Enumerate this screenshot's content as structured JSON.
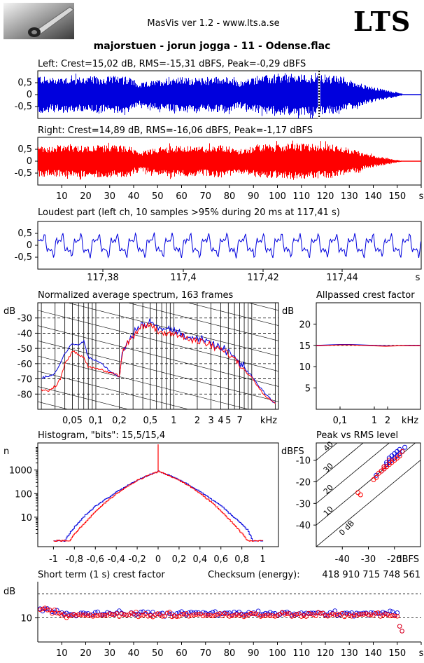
{
  "header": {
    "app_title": "MasVis ver 1.2 - www.lts.a.se",
    "brand": "LTS",
    "track_title": "majorstuen - jorun jogga - 11 - Odense.flac"
  },
  "colors": {
    "left": "#0000dd",
    "right": "#ff0000",
    "frame": "#000000",
    "grid": "#000000"
  },
  "chart_data": [
    {
      "id": "left_wave",
      "type": "area",
      "title": "Left: Crest=15,02 dB, RMS=-15,31 dBFS, Peak=-0,29 dBFS",
      "ylim": [
        -1,
        1
      ],
      "yticks": [
        "0,5",
        "0",
        "-0,5"
      ],
      "xlim": [
        0,
        160
      ],
      "marker_at_s": 117.41,
      "series": [
        {
          "name": "Left",
          "values": [
            0.85,
            0.72,
            0.75,
            0.78,
            0.74,
            0.76,
            0.78,
            0.75,
            0.8,
            0.77,
            0.76,
            0.45,
            0.55,
            0.62,
            0.7,
            0.75,
            0.73,
            0.72,
            0.7,
            0.74,
            0.78,
            0.72,
            0.55,
            0.65,
            0.78,
            0.82,
            0.8,
            0.84,
            0.88,
            0.85,
            0.86,
            0.84,
            0.82,
            0.78,
            0.65,
            0.55,
            0.4,
            0.3,
            0.22,
            0.12,
            0.05
          ]
        }
      ]
    },
    {
      "id": "right_wave",
      "type": "area",
      "title": "Right: Crest=14,89 dB, RMS=-16,06 dBFS, Peak=-1,17 dBFS",
      "ylim": [
        -1,
        1
      ],
      "yticks": [
        "0,5",
        "0",
        "-0,5"
      ],
      "xticks": [
        "10",
        "20",
        "30",
        "40",
        "50",
        "60",
        "70",
        "80",
        "90",
        "100",
        "110",
        "120",
        "130",
        "140",
        "150",
        "s"
      ],
      "xlim": [
        0,
        160
      ],
      "series": [
        {
          "name": "Right",
          "values": [
            0.72,
            0.62,
            0.66,
            0.68,
            0.64,
            0.67,
            0.69,
            0.66,
            0.7,
            0.67,
            0.66,
            0.38,
            0.48,
            0.56,
            0.62,
            0.66,
            0.64,
            0.63,
            0.62,
            0.66,
            0.7,
            0.63,
            0.5,
            0.58,
            0.68,
            0.72,
            0.7,
            0.74,
            0.76,
            0.74,
            0.75,
            0.73,
            0.72,
            0.68,
            0.56,
            0.46,
            0.32,
            0.24,
            0.16,
            0.08,
            0.02
          ]
        }
      ]
    },
    {
      "id": "loudest",
      "type": "line",
      "title": "Loudest part (left  ch, 10 samples >95% during 20 ms at 117,41 s)",
      "ylim": [
        -1,
        1
      ],
      "yticks": [
        "0,5",
        "0",
        "-0,5"
      ],
      "xticks": [
        "117,38",
        "117,4",
        "117,42",
        "117,44",
        "s"
      ],
      "series": [
        {
          "name": "Left"
        }
      ]
    },
    {
      "id": "spectrum",
      "type": "line",
      "title": "Normalized average spectrum, 163 frames",
      "ylabel": "dB",
      "yticks": [
        "-30",
        "-40",
        "-50",
        "-60",
        "-70",
        "-80"
      ],
      "xticks": [
        "0,05",
        "0,1",
        "0,2",
        "0,5",
        "1",
        "2",
        "3",
        "4",
        "5",
        "7",
        "kHz"
      ],
      "ylim": [
        -90,
        -20
      ],
      "x_khz": [
        0.02,
        0.025,
        0.03,
        0.035,
        0.04,
        0.05,
        0.06,
        0.07,
        0.08,
        0.1,
        0.12,
        0.15,
        0.18,
        0.2,
        0.22,
        0.25,
        0.3,
        0.35,
        0.4,
        0.5,
        0.6,
        0.7,
        0.8,
        1,
        1.2,
        1.5,
        2,
        2.5,
        3,
        4,
        5,
        6,
        7,
        8,
        10,
        12,
        15,
        20
      ],
      "series": [
        {
          "name": "Left",
          "values": [
            -70,
            -68,
            -66,
            -60,
            -53,
            -47,
            -48,
            -45,
            -56,
            -58,
            -60,
            -65,
            -67,
            -69,
            -52,
            -46,
            -40,
            -36,
            -34,
            -32,
            -36,
            -38,
            -37,
            -38,
            -40,
            -42,
            -44,
            -45,
            -47,
            -50,
            -52,
            -56,
            -60,
            -63,
            -68,
            -74,
            -80,
            -86
          ]
        },
        {
          "name": "Right",
          "values": [
            -77,
            -78,
            -75,
            -70,
            -60,
            -52,
            -54,
            -56,
            -62,
            -63,
            -64,
            -66,
            -67,
            -69,
            -54,
            -47,
            -42,
            -38,
            -36,
            -34,
            -38,
            -40,
            -39,
            -40,
            -42,
            -44,
            -45,
            -47,
            -48,
            -51,
            -53,
            -57,
            -61,
            -64,
            -69,
            -75,
            -81,
            -86
          ]
        }
      ]
    },
    {
      "id": "allpass",
      "type": "line",
      "title": "Allpassed crest factor",
      "ylabel": "dB",
      "yticks": [
        "20",
        "15",
        "10",
        "5"
      ],
      "ylim": [
        0,
        25
      ],
      "xticks": [
        "0,1",
        "1",
        "2",
        "kHz"
      ],
      "series": [
        {
          "name": "Left",
          "values": [
            15.0,
            15.1,
            15.2,
            15.2,
            15.1,
            15.0,
            14.9,
            14.9,
            15.0,
            15.0
          ]
        },
        {
          "name": "Right",
          "values": [
            14.9,
            15.0,
            15.1,
            15.1,
            15.0,
            14.9,
            14.8,
            14.9,
            14.9,
            14.9
          ]
        }
      ]
    },
    {
      "id": "histogram",
      "type": "line",
      "title": "Histogram, \"bits\": 15,5/15,4",
      "ylabel": "n",
      "yticks": [
        "1000",
        "100",
        "10"
      ],
      "xticks": [
        "-1",
        "-0,8",
        "-0,6",
        "-0,4",
        "-0,2",
        "0",
        "0,2",
        "0,4",
        "0,6",
        "0,8",
        "1"
      ],
      "x": [
        -1,
        -0.9,
        -0.85,
        -0.8,
        -0.7,
        -0.6,
        -0.5,
        -0.4,
        -0.3,
        -0.2,
        -0.1,
        0,
        0.1,
        0.2,
        0.3,
        0.4,
        0.5,
        0.6,
        0.7,
        0.8,
        0.85,
        0.9,
        1
      ],
      "series": [
        {
          "name": "Left",
          "values": [
            1,
            1,
            2,
            4,
            12,
            30,
            60,
            120,
            220,
            380,
            600,
            900,
            600,
            380,
            220,
            120,
            60,
            30,
            12,
            5,
            3,
            1,
            1
          ]
        },
        {
          "name": "Right",
          "values": [
            1,
            1,
            1,
            2,
            6,
            18,
            45,
            100,
            200,
            360,
            580,
            880,
            580,
            360,
            200,
            100,
            45,
            18,
            6,
            2,
            1,
            1,
            1
          ]
        }
      ]
    },
    {
      "id": "peak_rms",
      "type": "scatter",
      "title": "Peak vs RMS level",
      "ylabel": "dBFS",
      "xlabel": "dBFS",
      "yticks": [
        "-10",
        "-20",
        "-30",
        "-40"
      ],
      "xticks": [
        "-40",
        "-30",
        "-20"
      ],
      "crest_labels": [
        "40",
        "30",
        "20",
        "10",
        "0 dB"
      ],
      "xlim": [
        -50,
        -10
      ],
      "ylim": [
        -50,
        -2
      ],
      "series": [
        {
          "name": "Left",
          "points": [
            [
              -27,
              -17
            ],
            [
              -25,
              -15
            ],
            [
              -24,
              -14
            ],
            [
              -23,
              -12
            ],
            [
              -22,
              -11
            ],
            [
              -21,
              -10
            ],
            [
              -20,
              -9
            ],
            [
              -19,
              -8
            ],
            [
              -18,
              -7
            ],
            [
              -17,
              -6
            ],
            [
              -20,
              -7
            ],
            [
              -22,
              -9
            ],
            [
              -23,
              -11
            ],
            [
              -19,
              -6
            ],
            [
              -18,
              -5
            ],
            [
              -16,
              -4
            ],
            [
              -21,
              -8
            ],
            [
              -24,
              -13
            ]
          ]
        },
        {
          "name": "Right",
          "points": [
            [
              -34,
              -25
            ],
            [
              -33,
              -26
            ],
            [
              -28,
              -19
            ],
            [
              -27,
              -18
            ],
            [
              -26,
              -16
            ],
            [
              -25,
              -15
            ],
            [
              -24,
              -13
            ],
            [
              -23,
              -13
            ],
            [
              -22,
              -12
            ],
            [
              -21,
              -11
            ],
            [
              -20,
              -10
            ],
            [
              -19,
              -9
            ],
            [
              -18,
              -8
            ],
            [
              -17,
              -6
            ],
            [
              -22,
              -10
            ],
            [
              -24,
              -14
            ]
          ]
        }
      ]
    },
    {
      "id": "short_term",
      "type": "scatter",
      "title": "Short term (1 s) crest factor",
      "checksum_label": "Checksum (energy):",
      "checksum_value": "418 910 715 748 561",
      "ylabel": "dB",
      "yticks": [
        "10"
      ],
      "xticks": [
        "10",
        "20",
        "30",
        "40",
        "50",
        "60",
        "70",
        "80",
        "90",
        "100",
        "110",
        "120",
        "130",
        "140",
        "150",
        "s"
      ],
      "xlim": [
        0,
        160
      ],
      "ylim": [
        0,
        25
      ],
      "series": [
        {
          "name": "Left"
        },
        {
          "name": "Right"
        }
      ]
    }
  ]
}
